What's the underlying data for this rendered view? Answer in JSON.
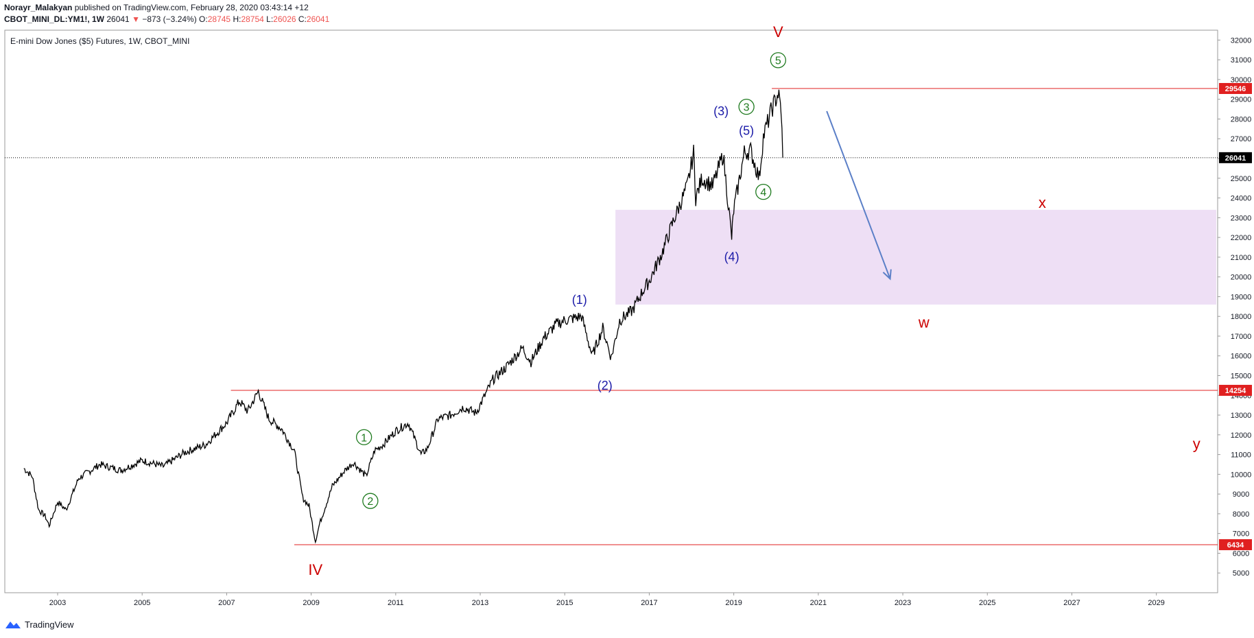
{
  "header": {
    "author": "Norayr_Malakyan",
    "published": " published on TradingView.com, February 28, 2020 03:43:14 +12",
    "symbol": "CBOT_MINI_DL:YM1!, 1W",
    "last": "26041",
    "change_arrow": "▼",
    "change": "−873 (−3.24%)",
    "o_label": "O:",
    "o": "28745",
    "h_label": "H:",
    "h": "28754",
    "l_label": "L:",
    "l": "26026",
    "c_label": "C:",
    "c": "26041"
  },
  "footer": {
    "brand": "TradingView"
  },
  "colors": {
    "candle": "#000000",
    "level_line": "#e02020",
    "zone_fill": "#eedff5",
    "arrow": "#5b7fc7",
    "label_red": "#cc0000",
    "label_blue": "#1a1aa8",
    "label_green": "#1e7a1e"
  },
  "chart_data": {
    "type": "line",
    "title": "E-mini Dow Jones ($5) Futures, 1W, CBOT_MINI",
    "xlabel": "",
    "ylabel": "",
    "xlim": [
      2001.75,
      2030.45
    ],
    "ylim": [
      4000,
      32500
    ],
    "x_ticks": [
      "2003",
      "2005",
      "2007",
      "2009",
      "2011",
      "2013",
      "2015",
      "2017",
      "2019",
      "2021",
      "2023",
      "2025",
      "2027",
      "2029"
    ],
    "y_ticks": [
      "5000",
      "6000",
      "7000",
      "8000",
      "9000",
      "10000",
      "11000",
      "12000",
      "13000",
      "14000",
      "15000",
      "16000",
      "17000",
      "18000",
      "19000",
      "20000",
      "21000",
      "22000",
      "23000",
      "24000",
      "25000",
      "26000",
      "27000",
      "28000",
      "29000",
      "30000",
      "31000",
      "32000"
    ],
    "grid": false,
    "series": [
      {
        "x": [
          2002.2,
          2002.4,
          2002.55,
          2002.7,
          2002.8,
          2003.0,
          2003.2,
          2003.5,
          2004.0,
          2004.5,
          2005.0,
          2005.5,
          2006.0,
          2006.5,
          2007.0,
          2007.3,
          2007.5,
          2007.75,
          2008.0,
          2008.3,
          2008.6,
          2008.8,
          2008.95,
          2009.1,
          2009.2,
          2009.5,
          2009.8,
          2010.0,
          2010.3,
          2010.5,
          2010.7,
          2011.0,
          2011.3,
          2011.6,
          2011.75,
          2012.0,
          2012.3,
          2012.6,
          2012.9,
          2013.3,
          2013.6,
          2014.0,
          2014.2,
          2014.5,
          2014.8,
          2015.0,
          2015.4,
          2015.65,
          2015.9,
          2016.1,
          2016.3,
          2016.6,
          2016.85,
          2017.0,
          2017.3,
          2017.6,
          2017.9,
          2018.05,
          2018.1,
          2018.25,
          2018.5,
          2018.75,
          2018.95,
          2019.0,
          2019.25,
          2019.4,
          2019.6,
          2019.7,
          2019.9,
          2020.05,
          2020.12,
          2020.16
        ],
        "values": [
          10300,
          9900,
          8200,
          7900,
          7400,
          8600,
          8200,
          9800,
          10500,
          10200,
          10700,
          10400,
          11100,
          11500,
          12600,
          13700,
          13200,
          14200,
          12800,
          12300,
          11200,
          8800,
          8400,
          6600,
          7500,
          9400,
          10200,
          10600,
          9900,
          11200,
          11500,
          12200,
          12600,
          11000,
          11300,
          12800,
          13000,
          13400,
          13100,
          14800,
          15400,
          16400,
          15700,
          16900,
          17600,
          17800,
          18000,
          16000,
          17400,
          15900,
          17800,
          18300,
          19300,
          19800,
          21200,
          23000,
          24600,
          26300,
          24000,
          25000,
          24600,
          26200,
          22000,
          23400,
          26300,
          26400,
          25000,
          27100,
          28500,
          29300,
          28500,
          26041
        ]
      }
    ],
    "levels": [
      {
        "value": 29546,
        "label": "29546"
      },
      {
        "value": 14254,
        "label": "14254"
      },
      {
        "value": 6434,
        "label": "6434"
      }
    ],
    "last_price": {
      "value": 26041,
      "label": "26041"
    },
    "zone": {
      "x_start": 2016.2,
      "y_low": 18600,
      "y_high": 23400
    },
    "projection_arrow": {
      "x_start": 2021.2,
      "y_start": 28400,
      "x_end": 2022.7,
      "y_end": 19900
    },
    "annotations": [
      {
        "text": "V",
        "x": 2020.05,
        "y": 32400,
        "color": "label_red",
        "circled": false
      },
      {
        "text": "5",
        "x": 2020.05,
        "y": 30980,
        "color": "label_green",
        "circled": true
      },
      {
        "text": "3",
        "x": 2019.3,
        "y": 28620,
        "color": "label_green",
        "circled": true
      },
      {
        "text": "4",
        "x": 2019.7,
        "y": 24310,
        "color": "label_green",
        "circled": true
      },
      {
        "text": "1",
        "x": 2010.25,
        "y": 11880,
        "color": "label_green",
        "circled": true
      },
      {
        "text": "2",
        "x": 2010.4,
        "y": 8650,
        "color": "label_green",
        "circled": true
      },
      {
        "text": "(3)",
        "x": 2018.7,
        "y": 28430,
        "color": "label_blue",
        "circled": false
      },
      {
        "text": "(5)",
        "x": 2019.3,
        "y": 27450,
        "color": "label_blue",
        "circled": false
      },
      {
        "text": "(4)",
        "x": 2018.95,
        "y": 21050,
        "color": "label_blue",
        "circled": false
      },
      {
        "text": "(1)",
        "x": 2015.35,
        "y": 18870,
        "color": "label_blue",
        "circled": false
      },
      {
        "text": "(2)",
        "x": 2015.95,
        "y": 14530,
        "color": "label_blue",
        "circled": false
      },
      {
        "text": "IV",
        "x": 2009.1,
        "y": 5140,
        "color": "label_red",
        "circled": false
      },
      {
        "text": "x",
        "x": 2026.3,
        "y": 23750,
        "color": "label_red",
        "circled": false
      },
      {
        "text": "w",
        "x": 2023.5,
        "y": 17680,
        "color": "label_red",
        "circled": false
      },
      {
        "text": "y",
        "x": 2029.95,
        "y": 11530,
        "color": "label_red",
        "circled": false
      }
    ]
  }
}
